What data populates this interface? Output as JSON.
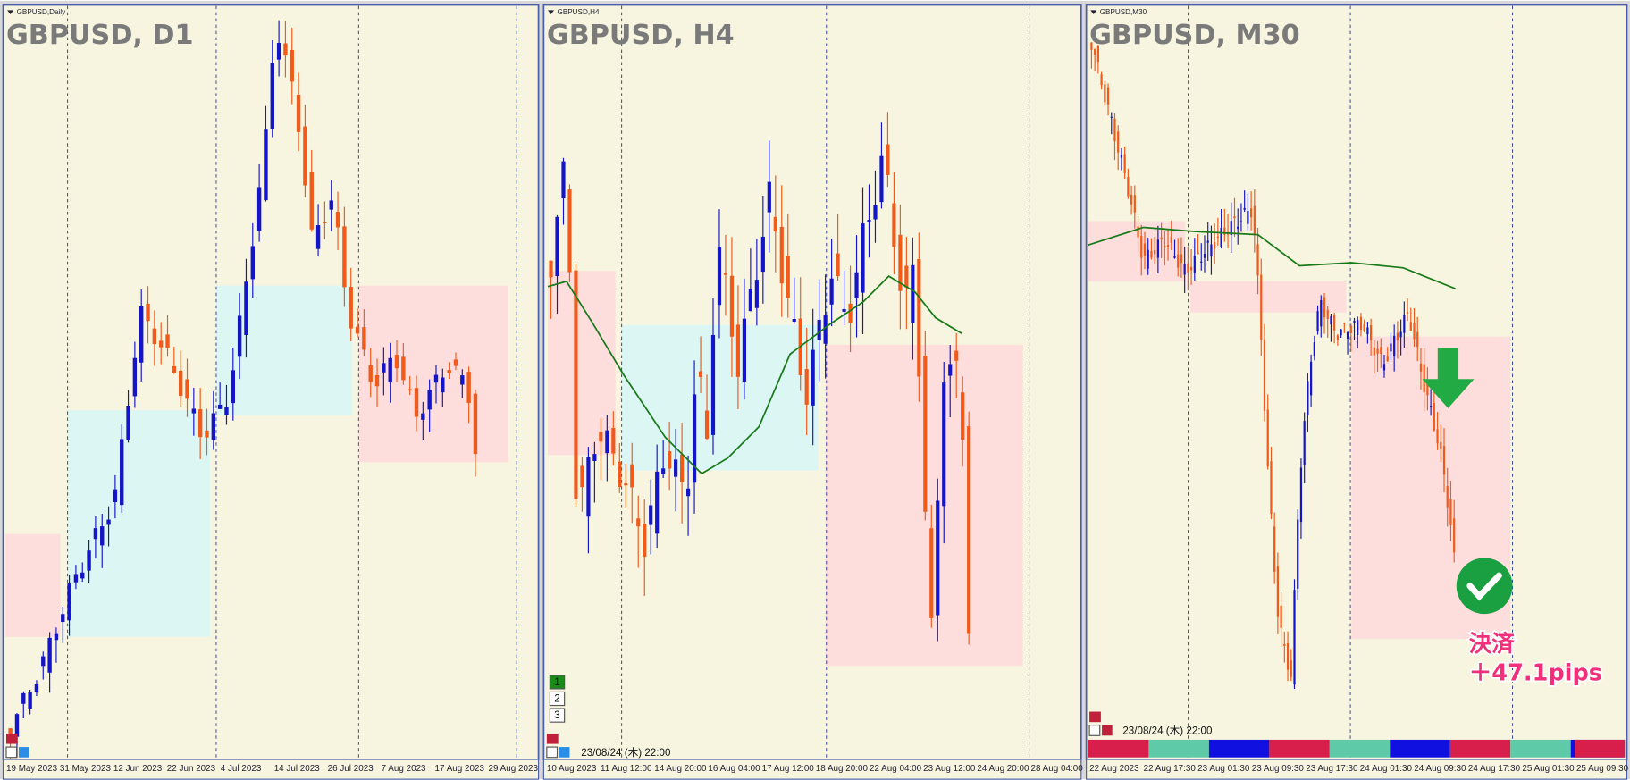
{
  "panels": [
    {
      "tab": "GBPUSD,Daily",
      "title": "GBPUSD, D1",
      "dates": [
        "19 May 2023",
        "31 May 2023",
        "12 Jun 2023",
        "22 Jun 2023",
        "4 Jul 2023",
        "14 Jul 2023",
        "26 Jul 2023",
        "7 Aug 2023",
        "17 Aug 2023",
        "29 Aug 2023"
      ]
    },
    {
      "tab": "GBPUSD,H4",
      "title": "GBPUSD, H4",
      "dates": [
        "10 Aug 2023",
        "11 Aug 12:00",
        "14 Aug 20:00",
        "16 Aug 04:00",
        "17 Aug 12:00",
        "18 Aug 20:00",
        "22 Aug 04:00",
        "23 Aug 12:00",
        "24 Aug 20:00",
        "28 Aug 04:00"
      ],
      "stamp": "23/08/24 (木) 22:00",
      "badges": [
        "1",
        "2",
        "3"
      ]
    },
    {
      "tab": "GBPUSD,M30",
      "title": "GBPUSD, M30",
      "dates": [
        "22 Aug 2023",
        "22 Aug 17:30",
        "23 Aug 01:30",
        "23 Aug 09:30",
        "23 Aug 17:30",
        "24 Aug 01:30",
        "24 Aug 09:30",
        "24 Aug 17:30",
        "25 Aug 01:30",
        "25 Aug 09:30"
      ],
      "stamp": "23/08/24 (木) 22:00",
      "annotation": [
        "決済",
        "＋47.1pips"
      ]
    }
  ]
}
